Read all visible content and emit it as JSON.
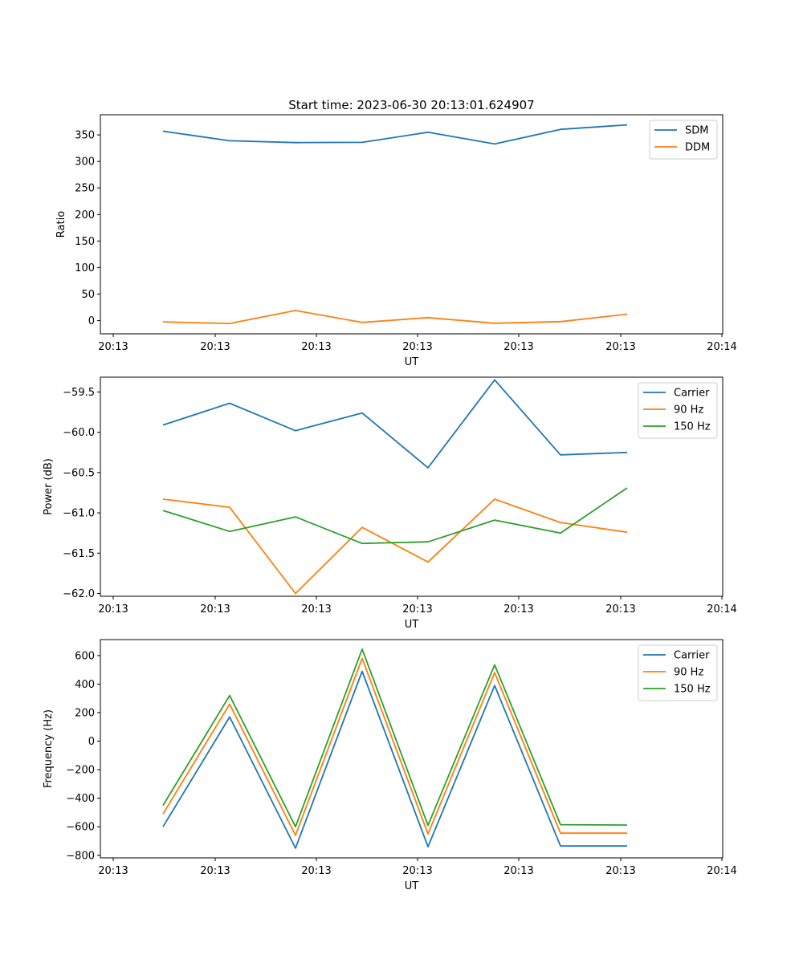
{
  "figure": {
    "title": "Start time: 2023-06-30 20:13:01.624907"
  },
  "chart_data": [
    {
      "type": "line",
      "ylabel": "Ratio",
      "xlabel": "UT",
      "x_ticks": [
        "20:13",
        "20:13",
        "20:13",
        "20:13",
        "20:13",
        "20:13",
        "20:14"
      ],
      "yticks": [
        0,
        50,
        100,
        150,
        200,
        250,
        300,
        350
      ],
      "ylim": [
        -25,
        388
      ],
      "legend": "top-right",
      "series": [
        {
          "name": "SDM",
          "color": "#1f77b4",
          "values": [
            357,
            339,
            335.5,
            336,
            355,
            333,
            360.5,
            369
          ]
        },
        {
          "name": "DDM",
          "color": "#ff7f0e",
          "values": [
            -2.5,
            -5.5,
            19,
            -3.5,
            5.5,
            -5,
            -2,
            12
          ]
        }
      ]
    },
    {
      "type": "line",
      "ylabel": "Power (dB)",
      "xlabel": "UT",
      "x_ticks": [
        "20:13",
        "20:13",
        "20:13",
        "20:13",
        "20:13",
        "20:13",
        "20:14"
      ],
      "yticks": [
        -62.0,
        -61.5,
        -61.0,
        -60.5,
        -60.0,
        -59.5
      ],
      "ytick_labels": [
        "−62.0",
        "−61.5",
        "−61.0",
        "−60.5",
        "−60.0",
        "−59.5"
      ],
      "ylim": [
        -62.035,
        -59.316
      ],
      "legend": "top-right",
      "series": [
        {
          "name": "Carrier",
          "color": "#1f77b4",
          "values": [
            -59.91,
            -59.64,
            -59.98,
            -59.76,
            -60.44,
            -59.35,
            -60.28,
            -60.25
          ]
        },
        {
          "name": "90 Hz",
          "color": "#ff7f0e",
          "values": [
            -60.83,
            -60.93,
            -62.0,
            -61.18,
            -61.61,
            -60.83,
            -61.12,
            -61.24
          ]
        },
        {
          "name": "150 Hz",
          "color": "#2ca02c",
          "values": [
            -60.97,
            -61.23,
            -61.05,
            -61.38,
            -61.36,
            -61.09,
            -61.25,
            -60.69
          ]
        }
      ]
    },
    {
      "type": "line",
      "ylabel": "Frequency (Hz)",
      "xlabel": "UT",
      "x_ticks": [
        "20:13",
        "20:13",
        "20:13",
        "20:13",
        "20:13",
        "20:13",
        "20:14"
      ],
      "yticks": [
        -800,
        -600,
        -400,
        -200,
        0,
        200,
        400,
        600
      ],
      "ytick_labels": [
        "−800",
        "−600",
        "−400",
        "−200",
        "0",
        "200",
        "400",
        "600"
      ],
      "ylim": [
        -818,
        712
      ],
      "legend": "top-right",
      "series": [
        {
          "name": "Carrier",
          "color": "#1f77b4",
          "values": [
            -600,
            170,
            -750,
            490,
            -740,
            390,
            -735,
            -735
          ]
        },
        {
          "name": "90 Hz",
          "color": "#ff7f0e",
          "values": [
            -510,
            260,
            -660,
            580,
            -650,
            480,
            -645,
            -645
          ]
        },
        {
          "name": "150 Hz",
          "color": "#2ca02c",
          "values": [
            -450,
            320,
            -600,
            645,
            -590,
            535,
            -585,
            -588
          ]
        }
      ]
    }
  ]
}
